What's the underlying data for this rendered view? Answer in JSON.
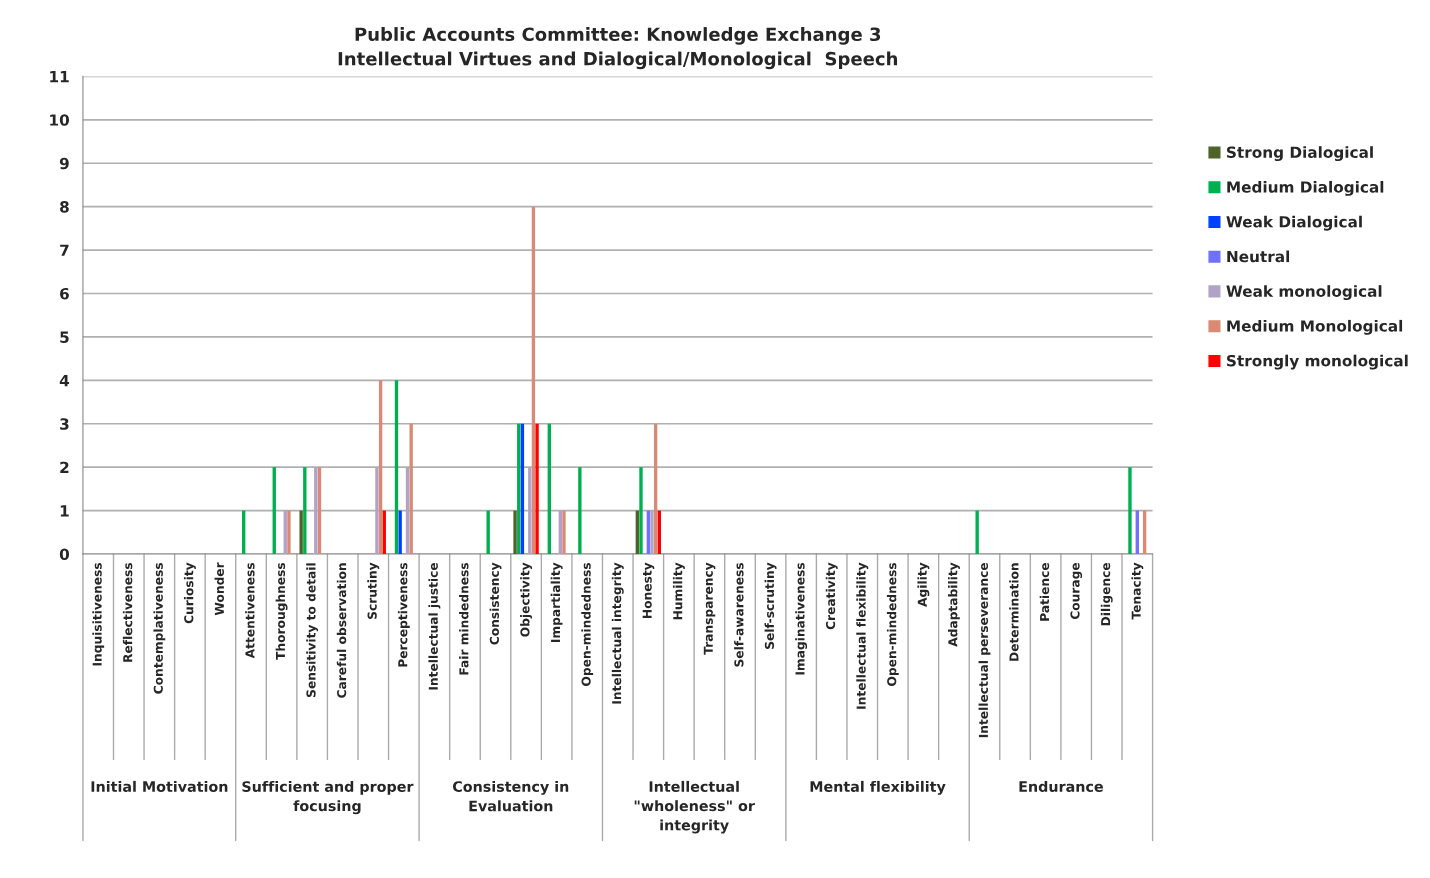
{
  "chart_data": {
    "type": "bar",
    "title": "Public Accounts Committee: Knowledge Exchange 3\nIntellectual Virtues and Dialogical/Monological  Speech",
    "categories": [
      "Inquisitiveness",
      "Reflectiveness",
      "Contemplativeness",
      "Curiosity",
      "Wonder",
      "Attentiveness",
      "Thoroughness",
      "Sensitivity to detail",
      "Careful observation",
      "Scrutiny",
      "Perceptiveness",
      "Intellectual justice",
      "Fair mindedness",
      "Consistency",
      "Objectivity",
      "Impartiality",
      "Open-mindedness",
      "Intellectual integrity",
      "Honesty",
      "Humility",
      "Transparency",
      "Self-awareness",
      "Self-scrutiny",
      "Imaginativeness",
      "Creativity",
      "Intellectual flexibility",
      "Open-mindedness",
      "Agility",
      "Adaptability",
      "Intellectual perseverance",
      "Determination",
      "Patience",
      "Courage",
      "Diligence",
      "Tenacity"
    ],
    "series": [
      {
        "name": "Strong Dialogical",
        "color": "#4f6228",
        "values": [
          0,
          0,
          0,
          0,
          0,
          0,
          0,
          1,
          0,
          0,
          0,
          0,
          0,
          0,
          1,
          0,
          0,
          0,
          1,
          0,
          0,
          0,
          0,
          0,
          0,
          0,
          0,
          0,
          0,
          0,
          0,
          0,
          0,
          0,
          0
        ]
      },
      {
        "name": "Medium Dialogical",
        "color": "#00b050",
        "values": [
          0,
          0,
          0,
          0,
          0,
          1,
          2,
          2,
          0,
          0,
          4,
          0,
          0,
          1,
          3,
          3,
          2,
          0,
          2,
          0,
          0,
          0,
          0,
          0,
          0,
          0,
          0,
          0,
          0,
          1,
          0,
          0,
          0,
          0,
          2
        ]
      },
      {
        "name": "Weak Dialogical",
        "color": "#0040ff",
        "values": [
          0,
          0,
          0,
          0,
          0,
          0,
          0,
          0,
          0,
          0,
          1,
          0,
          0,
          0,
          3,
          0,
          0,
          0,
          0,
          0,
          0,
          0,
          0,
          0,
          0,
          0,
          0,
          0,
          0,
          0,
          0,
          0,
          0,
          0,
          0
        ]
      },
      {
        "name": "Neutral",
        "color": "#7070ff",
        "values": [
          0,
          0,
          0,
          0,
          0,
          0,
          0,
          0,
          0,
          0,
          0,
          0,
          0,
          0,
          0,
          0,
          0,
          0,
          1,
          0,
          0,
          0,
          0,
          0,
          0,
          0,
          0,
          0,
          0,
          0,
          0,
          0,
          0,
          0,
          1
        ]
      },
      {
        "name": "Weak monological",
        "color": "#b3a2c7",
        "values": [
          0,
          0,
          0,
          0,
          0,
          0,
          1,
          2,
          0,
          2,
          2,
          0,
          0,
          0,
          2,
          1,
          0,
          0,
          1,
          0,
          0,
          0,
          0,
          0,
          0,
          0,
          0,
          0,
          0,
          0,
          0,
          0,
          0,
          0,
          0
        ]
      },
      {
        "name": "Medium Monological",
        "color": "#da8a74",
        "values": [
          0,
          0,
          0,
          0,
          0,
          0,
          1,
          2,
          0,
          4,
          3,
          0,
          0,
          0,
          8,
          1,
          0,
          0,
          3,
          0,
          0,
          0,
          0,
          0,
          0,
          0,
          0,
          0,
          0,
          0,
          0,
          0,
          0,
          0,
          1
        ]
      },
      {
        "name": "Strongly monological",
        "color": "#ff0000",
        "values": [
          0,
          0,
          0,
          0,
          0,
          0,
          0,
          0,
          0,
          1,
          0,
          0,
          0,
          0,
          3,
          0,
          0,
          0,
          1,
          0,
          0,
          0,
          0,
          0,
          0,
          0,
          0,
          0,
          0,
          0,
          0,
          0,
          0,
          0,
          0
        ]
      }
    ],
    "ylim": [
      0,
      11
    ],
    "yticks": [
      0,
      1,
      2,
      3,
      4,
      5,
      6,
      7,
      8,
      9,
      10,
      11
    ],
    "grid": "y",
    "legend": "right",
    "annotations": [
      "Initial Motivation",
      "Sufficient and proper\nfocusing",
      "Consistency in\nEvaluation",
      "Intellectual\n\"wholeness\" or\nintegrity",
      "Mental flexibility",
      "Endurance"
    ]
  }
}
